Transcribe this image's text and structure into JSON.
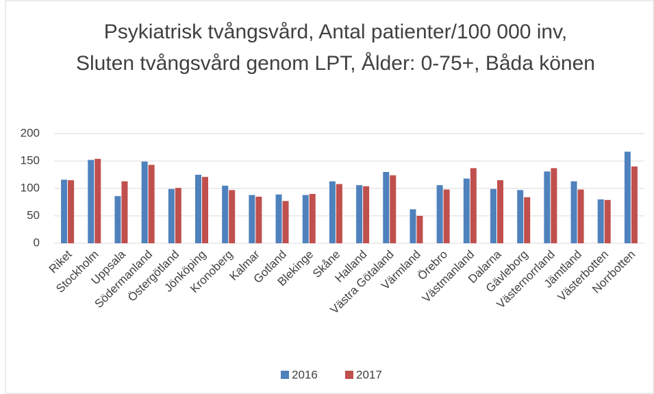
{
  "chart_data": {
    "type": "bar",
    "title": "Psykiatrisk tvångsvård, Antal patienter/100 000 inv, Sluten tvångsvård genom LPT, Ålder: 0-75+, Båda könen",
    "categories": [
      "Riket",
      "Stockholm",
      "Uppsala",
      "Södermanland",
      "Östergötland",
      "Jönköping",
      "Kronoberg",
      "Kalmar",
      "Gotland",
      "Blekinge",
      "Skåne",
      "Halland",
      "Västra Götaland",
      "Värmland",
      "Örebro",
      "Västmanland",
      "Dalarna",
      "Gävleborg",
      "Västernorrland",
      "Jämtland",
      "Västerbotten",
      "Norrbotten"
    ],
    "series": [
      {
        "name": "2016",
        "color": "#4f81bd",
        "values": [
          116,
          152,
          86,
          149,
          99,
          125,
          105,
          88,
          89,
          88,
          113,
          106,
          130,
          62,
          106,
          118,
          99,
          97,
          131,
          113,
          80,
          167
        ]
      },
      {
        "name": "2017",
        "color": "#c0504d",
        "values": [
          115,
          154,
          113,
          143,
          101,
          121,
          97,
          85,
          77,
          90,
          108,
          104,
          124,
          50,
          98,
          137,
          115,
          84,
          137,
          98,
          79,
          140
        ]
      }
    ],
    "ylim": [
      0,
      200
    ],
    "yticks": [
      0,
      50,
      100,
      150,
      200
    ],
    "grid": true,
    "legend": "bottom"
  }
}
